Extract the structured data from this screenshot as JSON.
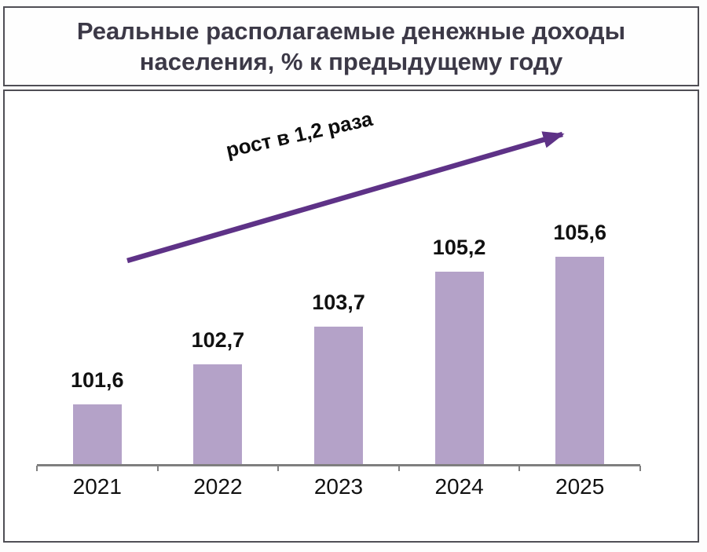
{
  "title": {
    "lines": [
      "Реальные располагаемые денежные доходы",
      "населения, % к предыдущему году"
    ]
  },
  "annotation": {
    "text": "рост в 1,2 раза"
  },
  "colors": {
    "bar": "#b4a2c8",
    "arrow": "#5e3287",
    "axis": "#7f7f7f",
    "title_text": "#3c3947",
    "label_text": "#111111",
    "frame_border": "#4f4e55"
  },
  "chart_data": {
    "type": "bar",
    "title": "Реальные располагаемые денежные доходы населения, % к предыдущему году",
    "categories": [
      "2021",
      "2022",
      "2023",
      "2024",
      "2025"
    ],
    "values": [
      101.6,
      102.7,
      103.7,
      105.2,
      105.6
    ],
    "value_labels": [
      "101,6",
      "102,7",
      "103,7",
      "105,2",
      "105,6"
    ],
    "xlabel": "",
    "ylabel": "",
    "baseline": 100,
    "ylim": [
      100,
      108
    ],
    "grid": false,
    "legend": false,
    "annotation": "рост в 1,2 раза"
  }
}
